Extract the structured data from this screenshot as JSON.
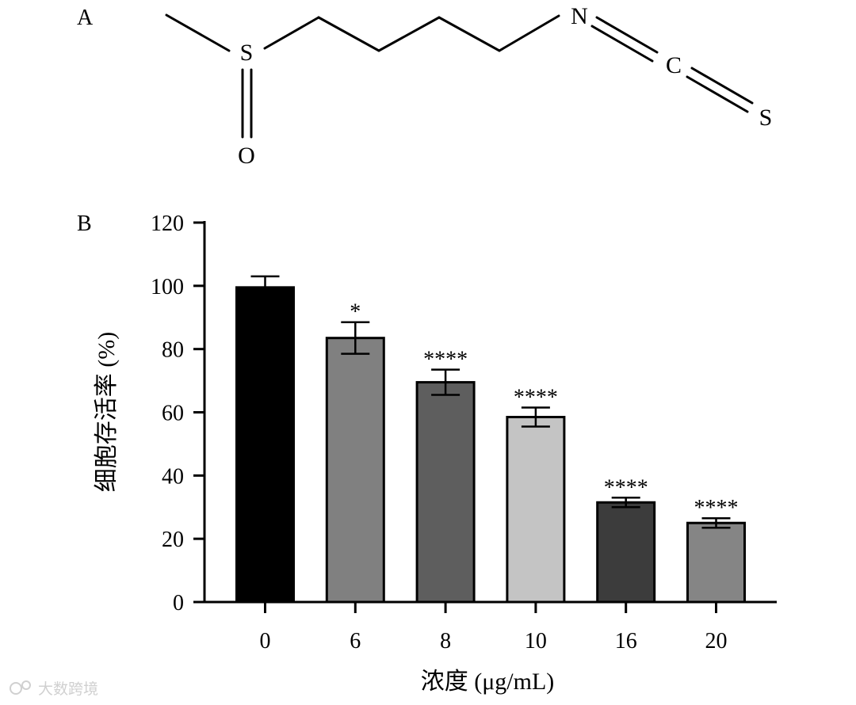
{
  "panel_a": {
    "label": "A",
    "atoms": {
      "s1": "S",
      "o": "O",
      "n": "N",
      "c": "C",
      "s2": "S"
    }
  },
  "panel_b": {
    "label": "B"
  },
  "watermark": "大数跨境",
  "chart_data": {
    "type": "bar",
    "categories": [
      "0",
      "6",
      "8",
      "10",
      "16",
      "20"
    ],
    "values": [
      99.5,
      83.5,
      69.5,
      58.5,
      31.5,
      25
    ],
    "errors": [
      3.5,
      5,
      4,
      3,
      1.5,
      1.5
    ],
    "significance": [
      "",
      "*",
      "****",
      "****",
      "****",
      "****"
    ],
    "bar_colors": [
      "#000000",
      "#808080",
      "#5e5e5e",
      "#c4c4c4",
      "#3c3c3c",
      "#858585"
    ],
    "xlabel": "浓度 (μg/mL)",
    "ylabel": "细胞存活率 (%)",
    "ylim": [
      0,
      120
    ],
    "yticks": [
      0,
      20,
      40,
      60,
      80,
      100,
      120
    ],
    "grid": false,
    "legend": "none"
  }
}
